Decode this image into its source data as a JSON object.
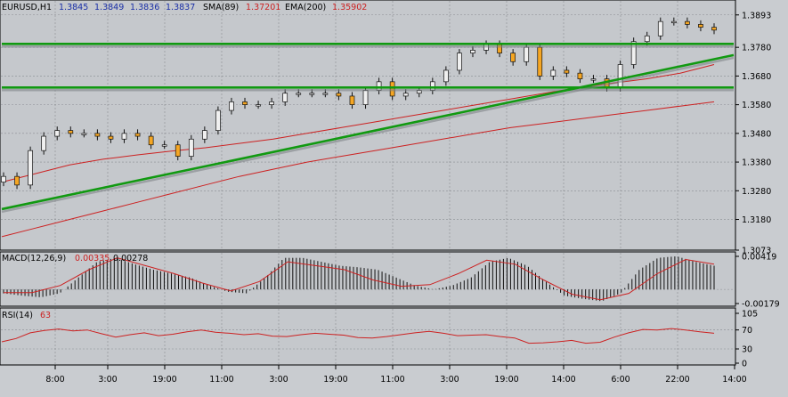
{
  "chart_data": [
    {
      "type": "candlestick",
      "symbol": "EURUSD,H1",
      "ohlc_readout": [
        "1.3845",
        "1.3849",
        "1.3836",
        "1.3837"
      ],
      "indicators": [
        {
          "label": "SMA(89)",
          "value": "1.37201",
          "color": "#cc2222"
        },
        {
          "label": "EMA(200)",
          "value": "1.35902",
          "color": "#cc2222"
        }
      ],
      "ylim": [
        1.3073,
        1.3945
      ],
      "y_ticks": [
        "1.3893",
        "1.3780",
        "1.3680",
        "1.3580",
        "1.3480",
        "1.3380",
        "1.3280",
        "1.3180",
        "1.3073"
      ],
      "x_ticks": [
        "8:00",
        "3:00",
        "19:00",
        "11:00",
        "3:00",
        "19:00",
        "11:00",
        "3:00",
        "19:00",
        "14:00",
        "6:00",
        "22:00",
        "14:00"
      ],
      "colors": {
        "bull": "#f0f0f0",
        "bear": "#f5a623",
        "wick": "#111111",
        "trendline": "#119911"
      },
      "close_series": [
        1.333,
        1.33,
        1.342,
        1.347,
        1.349,
        1.348,
        1.348,
        1.347,
        1.346,
        1.348,
        1.347,
        1.344,
        1.344,
        1.34,
        1.346,
        1.349,
        1.356,
        1.359,
        1.358,
        1.358,
        1.359,
        1.362,
        1.362,
        1.362,
        1.362,
        1.361,
        1.358,
        1.363,
        1.366,
        1.361,
        1.362,
        1.363,
        1.366,
        1.37,
        1.376,
        1.377,
        1.379,
        1.376,
        1.373,
        1.378,
        1.368,
        1.37,
        1.369,
        1.367,
        1.367,
        1.364,
        1.372,
        1.38,
        1.382,
        1.387,
        1.387,
        1.386,
        1.385,
        1.384
      ],
      "sma89_series": [
        1.331,
        1.334,
        1.337,
        1.339,
        1.3405,
        1.3418,
        1.343,
        1.3445,
        1.346,
        1.348,
        1.35,
        1.352,
        1.354,
        1.356,
        1.358,
        1.36,
        1.362,
        1.364,
        1.3655,
        1.367,
        1.369,
        1.372
      ],
      "ema200_series": [
        1.312,
        1.315,
        1.318,
        1.321,
        1.324,
        1.327,
        1.33,
        1.333,
        1.3355,
        1.338,
        1.34,
        1.342,
        1.344,
        1.346,
        1.348,
        1.35,
        1.3515,
        1.353,
        1.3545,
        1.356,
        1.3575,
        1.359
      ],
      "horizontal_lines": [
        1.3792,
        1.364
      ],
      "trendline": {
        "start": 1.3216,
        "end": 1.3753
      }
    },
    {
      "type": "histogram",
      "label": "MACD(12,26,9)",
      "values": [
        "0.00335",
        "0.00278"
      ],
      "y_ticks": [
        "0.00419",
        "-0.00179"
      ],
      "ylim": [
        -0.00179,
        0.00419
      ],
      "histogram_series": [
        -0.0005,
        -0.0008,
        -0.001,
        -0.0005,
        0.0015,
        0.0035,
        0.004,
        0.0032,
        0.0025,
        0.002,
        0.0015,
        0.0005,
        -0.0003,
        -0.0005,
        0.0015,
        0.004,
        0.004,
        0.0035,
        0.003,
        0.0028,
        0.0025,
        0.0015,
        0.0005,
        0.0,
        0.0005,
        0.0015,
        0.0035,
        0.004,
        0.003,
        0.001,
        -0.0008,
        -0.0012,
        -0.0015,
        -0.0005,
        0.0025,
        0.004,
        0.0042,
        0.0035,
        0.003
      ],
      "signal_series": [
        -0.0004,
        -0.0004,
        0.0005,
        0.0025,
        0.004,
        0.003,
        0.002,
        0.0008,
        -0.0002,
        0.001,
        0.0035,
        0.003,
        0.0025,
        0.0012,
        0.0004,
        0.0006,
        0.002,
        0.0037,
        0.0032,
        0.0012,
        -0.0006,
        -0.0013,
        -0.0005,
        0.002,
        0.0038,
        0.0032
      ],
      "colors": {
        "histogram": "#111111",
        "signal": "#cc2222"
      }
    },
    {
      "type": "line",
      "label": "RSI(14)",
      "value": "63",
      "ylim": [
        0,
        105
      ],
      "y_ticks": [
        "105",
        "70",
        "30",
        "0"
      ],
      "series": [
        45,
        52,
        64,
        69,
        72,
        68,
        70,
        62,
        55,
        60,
        64,
        58,
        61,
        66,
        70,
        65,
        63,
        60,
        62,
        57,
        56,
        60,
        63,
        61,
        59,
        54,
        53,
        56,
        60,
        64,
        67,
        63,
        58,
        59,
        60,
        56,
        53,
        42,
        43,
        45,
        48,
        42,
        44,
        55,
        64,
        71,
        70,
        73,
        70,
        66,
        63
      ],
      "colors": {
        "line": "#cc2222"
      }
    }
  ]
}
